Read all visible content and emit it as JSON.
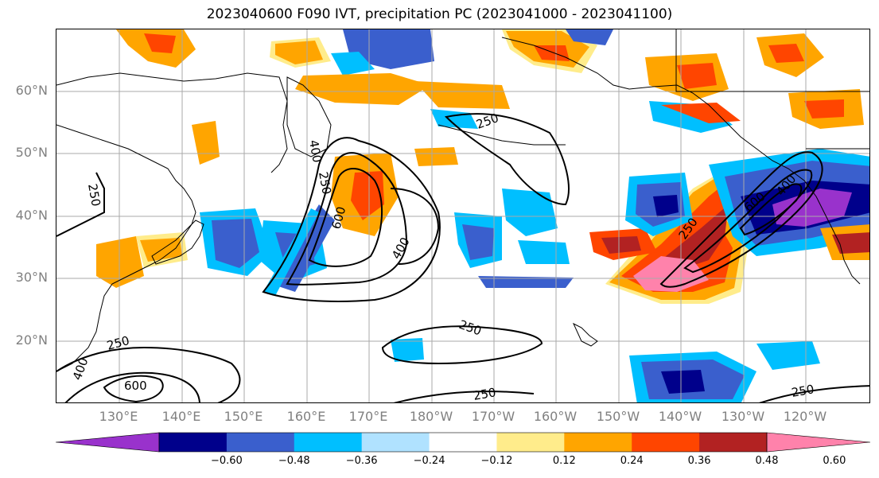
{
  "title": "2023040600 F090 IVT, precipitation PC (2023041000 - 2023041100)",
  "lat_labels": [
    "60°N",
    "50°N",
    "40°N",
    "30°N",
    "20°N"
  ],
  "lon_labels": [
    "130°E",
    "140°E",
    "150°E",
    "160°E",
    "170°E",
    "180°W",
    "170°W",
    "160°W",
    "150°W",
    "140°W",
    "130°W",
    "120°W"
  ],
  "contour_labels": [
    "250",
    "400",
    "600"
  ],
  "colorbar": {
    "ticks": [
      "−0.60",
      "−0.48",
      "−0.36",
      "−0.24",
      "−0.12",
      "0.12",
      "0.24",
      "0.36",
      "0.48",
      "0.60"
    ],
    "colors": [
      "#9932cc",
      "#00008b",
      "#3a5fcd",
      "#00bfff",
      "#b0e2ff",
      "#ffffff",
      "#ffec8b",
      "#ffa500",
      "#ff4500",
      "#b22222",
      "#ff82ab"
    ]
  },
  "map_legend": {
    "color_variable": "precipitation PC",
    "contour_variable": "IVT",
    "contour_levels": [
      250,
      400,
      600
    ],
    "extent": {
      "lon_min": 120,
      "lon_max": 251,
      "lat_min": 10,
      "lat_max": 70
    }
  }
}
